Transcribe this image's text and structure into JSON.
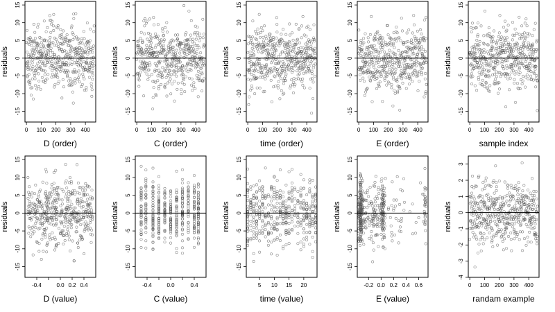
{
  "ylabel": "residuals",
  "chart_data": [
    {
      "type": "scatter",
      "xlabel": "D (order)",
      "ylabel": "residuals",
      "xlim": [
        -10,
        470
      ],
      "ylim": [
        -18,
        16
      ],
      "xticks": [
        0,
        100,
        200,
        300,
        400
      ],
      "xtick_labels": [
        "0",
        "100",
        "200",
        "300",
        "400"
      ],
      "yticks": [
        -15,
        -10,
        -5,
        0,
        5,
        10,
        15
      ],
      "ytick_labels": [
        "-15",
        "-10",
        "-5",
        "0",
        "5",
        "10",
        "15"
      ],
      "hline": 0,
      "x_kind": "order",
      "n": 460,
      "sd": 4.6
    },
    {
      "type": "scatter",
      "xlabel": "C (order)",
      "ylabel": "residuals",
      "xlim": [
        -10,
        470
      ],
      "ylim": [
        -18,
        16
      ],
      "xticks": [
        0,
        100,
        200,
        300,
        400
      ],
      "xtick_labels": [
        "0",
        "100",
        "200",
        "300",
        "400"
      ],
      "yticks": [
        -15,
        -10,
        -5,
        0,
        5,
        10,
        15
      ],
      "ytick_labels": [
        "-15",
        "-10",
        "-5",
        "0",
        "5",
        "10",
        "15"
      ],
      "hline": 0,
      "x_kind": "order",
      "n": 460,
      "sd": 4.6
    },
    {
      "type": "scatter",
      "xlabel": "time (order)",
      "ylabel": "residuals",
      "xlim": [
        -10,
        470
      ],
      "ylim": [
        -18,
        16
      ],
      "xticks": [
        0,
        100,
        200,
        300,
        400
      ],
      "xtick_labels": [
        "0",
        "100",
        "200",
        "300",
        "400"
      ],
      "yticks": [
        -15,
        -10,
        -5,
        0,
        5,
        10,
        15
      ],
      "ytick_labels": [
        "-15",
        "-10",
        "-5",
        "0",
        "5",
        "10",
        "15"
      ],
      "hline": 0,
      "x_kind": "order",
      "n": 460,
      "sd": 4.6
    },
    {
      "type": "scatter",
      "xlabel": "E (order)",
      "ylabel": "residuals",
      "xlim": [
        -10,
        470
      ],
      "ylim": [
        -18,
        16
      ],
      "xticks": [
        0,
        100,
        200,
        300,
        400
      ],
      "xtick_labels": [
        "0",
        "100",
        "200",
        "300",
        "400"
      ],
      "yticks": [
        -15,
        -10,
        -5,
        0,
        5,
        10,
        15
      ],
      "ytick_labels": [
        "-15",
        "-10",
        "-5",
        "0",
        "5",
        "10",
        "15"
      ],
      "hline": 0,
      "x_kind": "order",
      "n": 460,
      "sd": 4.6
    },
    {
      "type": "scatter",
      "xlabel": "sample index",
      "ylabel": "residuals",
      "xlim": [
        -10,
        470
      ],
      "ylim": [
        -18,
        16
      ],
      "xticks": [
        0,
        100,
        200,
        300,
        400
      ],
      "xtick_labels": [
        "0",
        "100",
        "200",
        "300",
        "400"
      ],
      "yticks": [
        -15,
        -10,
        -5,
        0,
        5,
        10,
        15
      ],
      "ytick_labels": [
        "-15",
        "-10",
        "-5",
        "0",
        "5",
        "10",
        "15"
      ],
      "hline": 0,
      "x_kind": "order",
      "n": 460,
      "sd": 4.6
    },
    {
      "type": "scatter",
      "xlabel": "D (value)",
      "ylabel": "residuals",
      "xlim": [
        -0.6,
        0.6
      ],
      "ylim": [
        -18,
        16
      ],
      "xticks": [
        -0.4,
        -0.2,
        0,
        0.2,
        0.4
      ],
      "xtick_labels": [
        "-0.4",
        "",
        "0.0",
        "0.2",
        "0.4"
      ],
      "yticks": [
        -15,
        -10,
        -5,
        0,
        5,
        10,
        15
      ],
      "ytick_labels": [
        "-15",
        "-10",
        "-5",
        "0",
        "5",
        "10",
        "15"
      ],
      "hline": 0,
      "x_kind": "uniform",
      "x_range": [
        -0.55,
        0.55
      ],
      "n": 460,
      "sd": 4.6
    },
    {
      "type": "scatter",
      "xlabel": "C (value)",
      "ylabel": "residuals",
      "xlim": [
        -0.6,
        0.6
      ],
      "ylim": [
        -18,
        16
      ],
      "xticks": [
        -0.4,
        -0.2,
        0,
        0.2,
        0.4
      ],
      "xtick_labels": [
        "-0.4",
        "",
        "0.0",
        "",
        "0.4"
      ],
      "yticks": [
        -15,
        -10,
        -5,
        0,
        5,
        10,
        15
      ],
      "ytick_labels": [
        "-15",
        "-10",
        "-5",
        "0",
        "5",
        "10",
        "15"
      ],
      "hline": 0,
      "x_kind": "levels",
      "x_levels": [
        -0.5,
        -0.42,
        -0.3,
        -0.2,
        -0.1,
        0.0,
        0.1,
        0.2,
        0.3,
        0.4,
        0.47
      ],
      "n": 460,
      "sd": 4.6
    },
    {
      "type": "scatter",
      "xlabel": "time (value)",
      "ylabel": "residuals",
      "xlim": [
        0.5,
        24.5
      ],
      "ylim": [
        -18,
        16
      ],
      "xticks": [
        5,
        10,
        15,
        20
      ],
      "xtick_labels": [
        "5",
        "10",
        "15",
        "20"
      ],
      "yticks": [
        -15,
        -10,
        -5,
        0,
        5,
        10,
        15
      ],
      "ytick_labels": [
        "-15",
        "-10",
        "-5",
        "0",
        "5",
        "10",
        "15"
      ],
      "hline": 0,
      "x_kind": "levels",
      "x_levels": [
        1,
        2,
        3,
        4,
        5,
        6,
        7,
        8,
        9,
        10,
        11,
        12,
        13,
        14,
        15,
        16,
        17,
        18,
        19,
        20,
        21,
        22,
        23,
        24
      ],
      "n": 460,
      "sd": 4.6
    },
    {
      "type": "scatter",
      "xlabel": "E (value)",
      "ylabel": "residuals",
      "xlim": [
        -0.38,
        0.75
      ],
      "ylim": [
        -18,
        16
      ],
      "xticks": [
        -0.2,
        0,
        0.2,
        0.4,
        0.6
      ],
      "xtick_labels": [
        "-0.2",
        "0.0",
        "0.2",
        "0.4",
        "0.6"
      ],
      "yticks": [
        -15,
        -10,
        -5,
        0,
        5,
        10,
        15
      ],
      "ytick_labels": [
        "-15",
        "-10",
        "-5",
        "0",
        "5",
        "10",
        "15"
      ],
      "hline": 0,
      "x_kind": "clustered",
      "clusters": [
        {
          "center": -0.33,
          "spread": 0.018,
          "n": 190
        },
        {
          "center": -0.22,
          "spread": 0.05,
          "n": 40
        },
        {
          "center": -0.09,
          "spread": 0.045,
          "n": 70
        },
        {
          "center": 0.03,
          "spread": 0.02,
          "n": 90
        },
        {
          "center": 0.3,
          "spread": 0.13,
          "n": 40
        },
        {
          "center": 0.7,
          "spread": 0.01,
          "n": 30
        }
      ],
      "sd": 4.6
    },
    {
      "type": "scatter",
      "xlabel": "randam example",
      "ylabel": "residuals",
      "xlim": [
        -10,
        470
      ],
      "ylim": [
        -4,
        3.5
      ],
      "xticks": [
        0,
        100,
        200,
        300,
        400
      ],
      "xtick_labels": [
        "0",
        "100",
        "200",
        "300",
        "400"
      ],
      "yticks": [
        -4,
        -3,
        -2,
        -1,
        0,
        1,
        2,
        3
      ],
      "ytick_labels": [
        "-4",
        "-3",
        "-2",
        "-1",
        "0",
        "1",
        "2",
        "3"
      ],
      "hline": 0,
      "x_kind": "order",
      "n": 460,
      "sd": 1.0
    }
  ]
}
